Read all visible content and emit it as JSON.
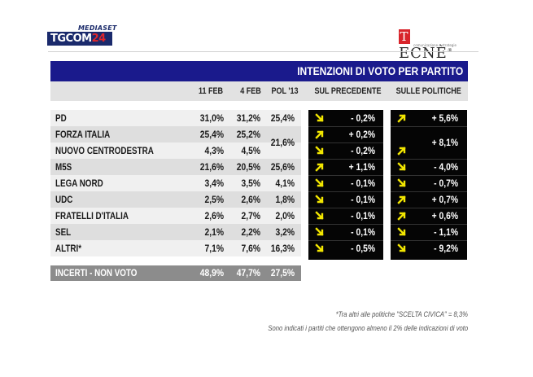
{
  "branding": {
    "mediaset": "MEDIASET",
    "tgcom_a": "TGCOM",
    "tgcom_b": "24",
    "tecne_first": "T",
    "tecne_rest": "ECNÈ",
    "tecne_reg": "®",
    "tecne_sub": "comunicazione e strategie"
  },
  "chart_data": {
    "type": "table",
    "title": "INTENZIONI DI VOTO PER PARTITO",
    "columns": [
      "11 FEB",
      "4 FEB",
      "POL '13",
      "SUL PRECEDENTE",
      "SULLE POLITICHE"
    ],
    "rows": [
      {
        "party": "PD",
        "feb11": "31,0%",
        "feb4": "31,2%",
        "pol13": "25,4%",
        "sul_prec": "- 0,2%",
        "sul_prec_dir": "down",
        "sulle_pol": "+ 5,6%",
        "sulle_pol_dir": "up"
      },
      {
        "party": "FORZA ITALIA",
        "feb11": "25,4%",
        "feb4": "25,2%",
        "pol13": "21,6%",
        "sul_prec": "+ 0,2%",
        "sul_prec_dir": "up",
        "sulle_pol": "+ 8,1%",
        "sulle_pol_dir": "up"
      },
      {
        "party": "NUOVO CENTRODESTRA",
        "feb11": "4,3%",
        "feb4": "4,5%",
        "pol13": "21,6%",
        "sul_prec": "- 0,2%",
        "sul_prec_dir": "down",
        "sulle_pol": "+ 8,1%",
        "sulle_pol_dir": "up"
      },
      {
        "party": "M5S",
        "feb11": "21,6%",
        "feb4": "20,5%",
        "pol13": "25,6%",
        "sul_prec": "+ 1,1%",
        "sul_prec_dir": "up",
        "sulle_pol": "- 4,0%",
        "sulle_pol_dir": "down"
      },
      {
        "party": "LEGA NORD",
        "feb11": "3,4%",
        "feb4": "3,5%",
        "pol13": "4,1%",
        "sul_prec": "- 0,1%",
        "sul_prec_dir": "down",
        "sulle_pol": "- 0,7%",
        "sulle_pol_dir": "down"
      },
      {
        "party": "UDC",
        "feb11": "2,5%",
        "feb4": "2,6%",
        "pol13": "1,8%",
        "sul_prec": "- 0,1%",
        "sul_prec_dir": "down",
        "sulle_pol": "+ 0,7%",
        "sulle_pol_dir": "up"
      },
      {
        "party": "FRATELLI D'ITALIA",
        "feb11": "2,6%",
        "feb4": "2,7%",
        "pol13": "2,0%",
        "sul_prec": "- 0,1%",
        "sul_prec_dir": "down",
        "sulle_pol": "+ 0,6%",
        "sulle_pol_dir": "up"
      },
      {
        "party": "SEL",
        "feb11": "2,1%",
        "feb4": "2,2%",
        "pol13": "3,2%",
        "sul_prec": "- 0,1%",
        "sul_prec_dir": "down",
        "sulle_pol": "- 1,1%",
        "sulle_pol_dir": "down"
      },
      {
        "party": "ALTRI*",
        "feb11": "7,1%",
        "feb4": "7,6%",
        "pol13": "16,3%",
        "sul_prec": "- 0,5%",
        "sul_prec_dir": "down",
        "sulle_pol": "- 9,2%",
        "sulle_pol_dir": "down"
      }
    ],
    "incerti": {
      "label": "INCERTI - NON VOTO",
      "feb11": "48,9%",
      "feb4": "47,7%",
      "pol13": "27,5%"
    },
    "merged_note": "FORZA ITALIA and NUOVO CENTRODESTRA share POL '13 and SULLE POLITICHE values"
  },
  "footnotes": {
    "line1": "*Tra altri alle politiche \"SCELTA CIVICA\" = 8,3%",
    "line2": "Sono indicati i partiti che ottengono almeno il 2% delle indicazioni di voto"
  },
  "colors": {
    "title_bar": "#1a1a8c",
    "arrow": "#f2e600",
    "row_light": "#f0f0f0",
    "row_dark": "#dedede",
    "incerti_bg": "#8c8c8c"
  }
}
